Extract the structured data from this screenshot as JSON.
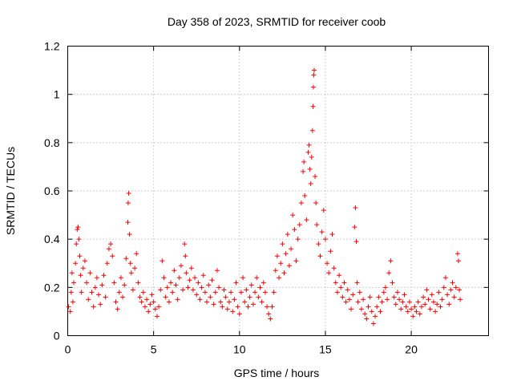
{
  "chart_data": {
    "type": "scatter",
    "title": "Day 358 of 2023, SRMTID for receiver coob",
    "xlabel": "GPS time / hours",
    "ylabel": "SRMTID / TECUs",
    "xlim": [
      0,
      24.5
    ],
    "ylim": [
      0,
      1.2
    ],
    "xticks": [
      0,
      5,
      10,
      15,
      20
    ],
    "xtick_labels": [
      "0",
      "5",
      "10",
      "15",
      "20"
    ],
    "yticks": [
      0,
      0.2,
      0.4,
      0.6,
      0.8,
      1.0,
      1.2
    ],
    "ytick_labels": [
      "0",
      "0.2",
      "0.4",
      "0.6",
      "0.8",
      "1",
      "1.2"
    ],
    "grid": true,
    "marker": "plus",
    "series": [
      {
        "name": "SRMTID",
        "color": "#ff0000",
        "points": [
          [
            0.05,
            0.12
          ],
          [
            0.15,
            0.1
          ],
          [
            0.2,
            0.18
          ],
          [
            0.25,
            0.26
          ],
          [
            0.3,
            0.14
          ],
          [
            0.35,
            0.22
          ],
          [
            0.45,
            0.3
          ],
          [
            0.5,
            0.38
          ],
          [
            0.55,
            0.44
          ],
          [
            0.6,
            0.45
          ],
          [
            0.65,
            0.4
          ],
          [
            0.7,
            0.33
          ],
          [
            0.75,
            0.25
          ],
          [
            0.8,
            0.18
          ],
          [
            0.9,
            0.28
          ],
          [
            1.0,
            0.31
          ],
          [
            1.1,
            0.22
          ],
          [
            1.2,
            0.15
          ],
          [
            1.3,
            0.26
          ],
          [
            1.4,
            0.18
          ],
          [
            1.5,
            0.12
          ],
          [
            1.6,
            0.2
          ],
          [
            1.7,
            0.24
          ],
          [
            1.8,
            0.17
          ],
          [
            1.9,
            0.13
          ],
          [
            2.0,
            0.21
          ],
          [
            2.1,
            0.25
          ],
          [
            2.2,
            0.16
          ],
          [
            2.3,
            0.3
          ],
          [
            2.4,
            0.36
          ],
          [
            2.5,
            0.38
          ],
          [
            2.6,
            0.33
          ],
          [
            2.7,
            0.22
          ],
          [
            2.8,
            0.14
          ],
          [
            2.9,
            0.11
          ],
          [
            3.0,
            0.18
          ],
          [
            3.1,
            0.24
          ],
          [
            3.2,
            0.16
          ],
          [
            3.3,
            0.21
          ],
          [
            3.4,
            0.32
          ],
          [
            3.5,
            0.47
          ],
          [
            3.52,
            0.55
          ],
          [
            3.55,
            0.59
          ],
          [
            3.6,
            0.42
          ],
          [
            3.65,
            0.3
          ],
          [
            3.7,
            0.26
          ],
          [
            3.8,
            0.19
          ],
          [
            3.9,
            0.28
          ],
          [
            4.0,
            0.34
          ],
          [
            4.1,
            0.22
          ],
          [
            4.2,
            0.16
          ],
          [
            4.3,
            0.14
          ],
          [
            4.4,
            0.18
          ],
          [
            4.5,
            0.12
          ],
          [
            4.6,
            0.15
          ],
          [
            4.7,
            0.1
          ],
          [
            4.8,
            0.13
          ],
          [
            4.9,
            0.17
          ],
          [
            5.0,
            0.14
          ],
          [
            5.1,
            0.11
          ],
          [
            5.2,
            0.08
          ],
          [
            5.3,
            0.12
          ],
          [
            5.4,
            0.19
          ],
          [
            5.5,
            0.31
          ],
          [
            5.6,
            0.24
          ],
          [
            5.7,
            0.16
          ],
          [
            5.8,
            0.2
          ],
          [
            5.9,
            0.14
          ],
          [
            6.0,
            0.22
          ],
          [
            6.1,
            0.18
          ],
          [
            6.2,
            0.27
          ],
          [
            6.3,
            0.21
          ],
          [
            6.4,
            0.15
          ],
          [
            6.5,
            0.24
          ],
          [
            6.6,
            0.29
          ],
          [
            6.7,
            0.19
          ],
          [
            6.8,
            0.38
          ],
          [
            6.85,
            0.33
          ],
          [
            6.9,
            0.26
          ],
          [
            7.0,
            0.2
          ],
          [
            7.1,
            0.23
          ],
          [
            7.2,
            0.28
          ],
          [
            7.3,
            0.19
          ],
          [
            7.4,
            0.24
          ],
          [
            7.5,
            0.17
          ],
          [
            7.6,
            0.22
          ],
          [
            7.7,
            0.15
          ],
          [
            7.8,
            0.2
          ],
          [
            7.9,
            0.25
          ],
          [
            8.0,
            0.18
          ],
          [
            8.1,
            0.14
          ],
          [
            8.2,
            0.21
          ],
          [
            8.3,
            0.16
          ],
          [
            8.4,
            0.23
          ],
          [
            8.5,
            0.13
          ],
          [
            8.6,
            0.18
          ],
          [
            8.7,
            0.27
          ],
          [
            8.8,
            0.2
          ],
          [
            8.9,
            0.14
          ],
          [
            9.0,
            0.12
          ],
          [
            9.1,
            0.19
          ],
          [
            9.2,
            0.16
          ],
          [
            9.3,
            0.11
          ],
          [
            9.4,
            0.14
          ],
          [
            9.5,
            0.18
          ],
          [
            9.6,
            0.1
          ],
          [
            9.7,
            0.15
          ],
          [
            9.8,
            0.22
          ],
          [
            9.9,
            0.12
          ],
          [
            10.0,
            0.09
          ],
          [
            10.1,
            0.18
          ],
          [
            10.2,
            0.24
          ],
          [
            10.3,
            0.14
          ],
          [
            10.4,
            0.19
          ],
          [
            10.5,
            0.12
          ],
          [
            10.6,
            0.16
          ],
          [
            10.7,
            0.21
          ],
          [
            10.8,
            0.13
          ],
          [
            10.9,
            0.18
          ],
          [
            11.0,
            0.24
          ],
          [
            11.1,
            0.16
          ],
          [
            11.2,
            0.2
          ],
          [
            11.3,
            0.14
          ],
          [
            11.4,
            0.22
          ],
          [
            11.5,
            0.18
          ],
          [
            11.6,
            0.12
          ],
          [
            11.7,
            0.09
          ],
          [
            11.8,
            0.07
          ],
          [
            11.9,
            0.12
          ],
          [
            12.0,
            0.18
          ],
          [
            12.1,
            0.27
          ],
          [
            12.2,
            0.33
          ],
          [
            12.3,
            0.24
          ],
          [
            12.4,
            0.3
          ],
          [
            12.5,
            0.38
          ],
          [
            12.6,
            0.26
          ],
          [
            12.7,
            0.34
          ],
          [
            12.8,
            0.42
          ],
          [
            12.9,
            0.29
          ],
          [
            13.0,
            0.36
          ],
          [
            13.1,
            0.5
          ],
          [
            13.2,
            0.44
          ],
          [
            13.3,
            0.31
          ],
          [
            13.4,
            0.4
          ],
          [
            13.5,
            0.46
          ],
          [
            13.6,
            0.55
          ],
          [
            13.7,
            0.68
          ],
          [
            13.75,
            0.72
          ],
          [
            13.8,
            0.58
          ],
          [
            13.9,
            0.48
          ],
          [
            14.0,
            0.76
          ],
          [
            14.05,
            0.79
          ],
          [
            14.1,
            0.69
          ],
          [
            14.15,
            0.63
          ],
          [
            14.2,
            0.74
          ],
          [
            14.25,
            0.85
          ],
          [
            14.28,
            0.95
          ],
          [
            14.3,
            1.03
          ],
          [
            14.32,
            1.08
          ],
          [
            14.35,
            1.1
          ],
          [
            14.4,
            0.66
          ],
          [
            14.45,
            0.55
          ],
          [
            14.5,
            0.46
          ],
          [
            14.6,
            0.38
          ],
          [
            14.7,
            0.33
          ],
          [
            14.8,
            0.43
          ],
          [
            14.9,
            0.52
          ],
          [
            15.0,
            0.4
          ],
          [
            15.1,
            0.3
          ],
          [
            15.2,
            0.26
          ],
          [
            15.3,
            0.35
          ],
          [
            15.4,
            0.42
          ],
          [
            15.5,
            0.28
          ],
          [
            15.6,
            0.22
          ],
          [
            15.7,
            0.18
          ],
          [
            15.8,
            0.25
          ],
          [
            15.9,
            0.2
          ],
          [
            16.0,
            0.16
          ],
          [
            16.1,
            0.22
          ],
          [
            16.2,
            0.14
          ],
          [
            16.3,
            0.19
          ],
          [
            16.4,
            0.15
          ],
          [
            16.5,
            0.11
          ],
          [
            16.6,
            0.17
          ],
          [
            16.7,
            0.45
          ],
          [
            16.75,
            0.53
          ],
          [
            16.8,
            0.39
          ],
          [
            16.85,
            0.22
          ],
          [
            16.9,
            0.14
          ],
          [
            17.0,
            0.18
          ],
          [
            17.1,
            0.11
          ],
          [
            17.2,
            0.15
          ],
          [
            17.3,
            0.09
          ],
          [
            17.4,
            0.07
          ],
          [
            17.5,
            0.12
          ],
          [
            17.6,
            0.16
          ],
          [
            17.7,
            0.1
          ],
          [
            17.8,
            0.05
          ],
          [
            17.9,
            0.08
          ],
          [
            18.0,
            0.12
          ],
          [
            18.1,
            0.16
          ],
          [
            18.2,
            0.1
          ],
          [
            18.3,
            0.14
          ],
          [
            18.4,
            0.18
          ],
          [
            18.5,
            0.2
          ],
          [
            18.6,
            0.15
          ],
          [
            18.7,
            0.26
          ],
          [
            18.8,
            0.31
          ],
          [
            18.9,
            0.22
          ],
          [
            19.0,
            0.16
          ],
          [
            19.1,
            0.13
          ],
          [
            19.2,
            0.18
          ],
          [
            19.3,
            0.15
          ],
          [
            19.4,
            0.11
          ],
          [
            19.5,
            0.14
          ],
          [
            19.6,
            0.17
          ],
          [
            19.7,
            0.12
          ],
          [
            19.8,
            0.1
          ],
          [
            19.9,
            0.14
          ],
          [
            20.0,
            0.11
          ],
          [
            20.1,
            0.08
          ],
          [
            20.2,
            0.12
          ],
          [
            20.3,
            0.1
          ],
          [
            20.4,
            0.14
          ],
          [
            20.5,
            0.09
          ],
          [
            20.6,
            0.12
          ],
          [
            20.7,
            0.16
          ],
          [
            20.8,
            0.13
          ],
          [
            20.9,
            0.19
          ],
          [
            21.0,
            0.15
          ],
          [
            21.1,
            0.11
          ],
          [
            21.2,
            0.17
          ],
          [
            21.3,
            0.14
          ],
          [
            21.4,
            0.1
          ],
          [
            21.5,
            0.13
          ],
          [
            21.6,
            0.18
          ],
          [
            21.7,
            0.12
          ],
          [
            21.8,
            0.15
          ],
          [
            21.9,
            0.2
          ],
          [
            22.0,
            0.24
          ],
          [
            22.1,
            0.17
          ],
          [
            22.2,
            0.13
          ],
          [
            22.3,
            0.19
          ],
          [
            22.4,
            0.22
          ],
          [
            22.5,
            0.16
          ],
          [
            22.6,
            0.2
          ],
          [
            22.7,
            0.34
          ],
          [
            22.75,
            0.31
          ],
          [
            22.8,
            0.19
          ],
          [
            22.85,
            0.15
          ]
        ]
      }
    ]
  }
}
